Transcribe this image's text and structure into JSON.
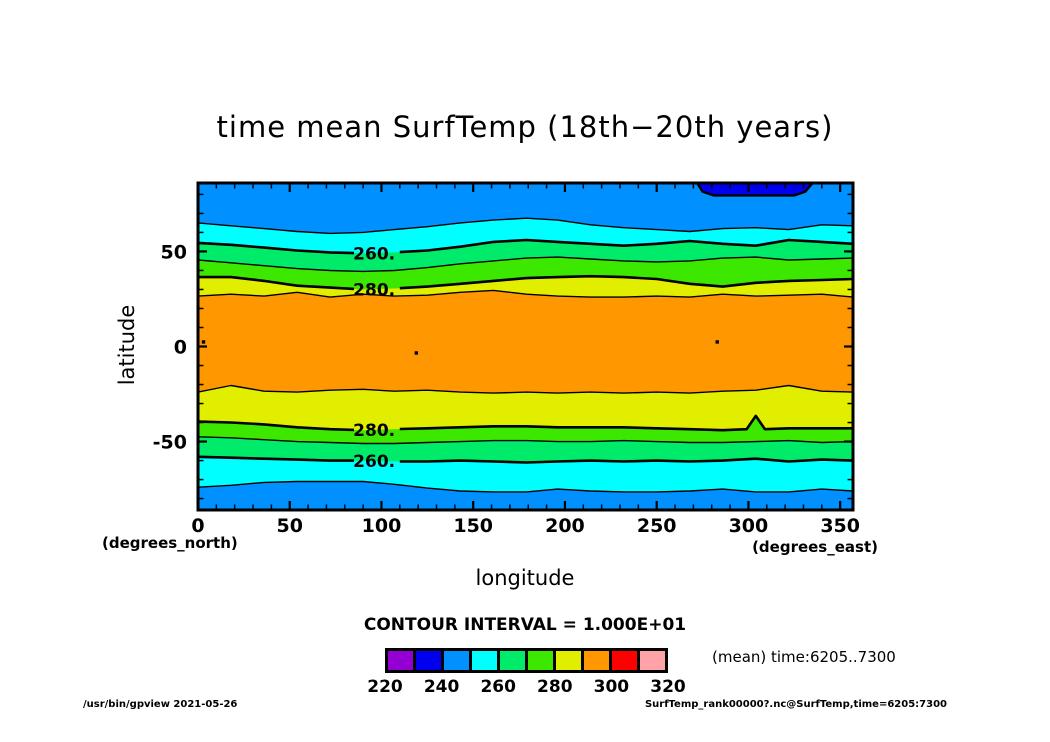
{
  "title": "time mean SurfTemp (18th−20th years)",
  "y_axis": {
    "label": "latitude",
    "unit": "(degrees_north)",
    "ticks": [
      "50",
      "0",
      "-50"
    ]
  },
  "x_axis": {
    "label": "longitude",
    "unit": "(degrees_east)",
    "ticks": [
      "0",
      "50",
      "100",
      "150",
      "200",
      "250",
      "300",
      "350"
    ]
  },
  "colorbar": {
    "heading": "CONTOUR INTERVAL = 1.000E+01",
    "tick_labels": [
      "220",
      "240",
      "260",
      "280",
      "300",
      "320"
    ],
    "cell_colors": [
      "#9400D3",
      "#0000EE",
      "#0090FF",
      "#00FFFF",
      "#00EB69",
      "#3CE800",
      "#E1EE00",
      "#FF9800",
      "#FF0000",
      "#FFA3A8"
    ],
    "cell_ranges": [
      "220-230",
      "230-240",
      "240-250",
      "250-260",
      "260-270",
      "270-280",
      "280-290",
      "290-300",
      "300-310",
      "310-320"
    ]
  },
  "annotations": {
    "mean_time": "(mean) time:6205..7300",
    "footer_left": "/usr/bin/gpview   2021-05-26",
    "footer_right": "SurfTemp_rank00000?.nc@SurfTemp,time=6205:7300"
  },
  "chart_data": {
    "type": "heatmap",
    "subtype": "filled-contour-map",
    "title": "time mean SurfTemp (18th-20th years)",
    "xlabel": "longitude (degrees_east)",
    "ylabel": "latitude (degrees_north)",
    "xlim": [
      0,
      357
    ],
    "ylim": [
      -86,
      86
    ],
    "x_major_ticks": [
      0,
      50,
      100,
      150,
      200,
      250,
      300,
      350
    ],
    "x_minor_step": 10,
    "y_major_ticks": [
      50,
      0,
      -50
    ],
    "y_minor_step": 10,
    "contour_interval": 10,
    "band_colors_north_to_south": [
      "#0090FF",
      "#00FFFF",
      "#00EB69",
      "#3CE800",
      "#E1EE00",
      "#FF9800",
      "#E1EE00",
      "#3CE800",
      "#00EB69",
      "#00FFFF",
      "#0090FF"
    ],
    "band_values_north_to_south": [
      "240-250",
      "250-260",
      "260-270",
      "270-280",
      "280-290",
      "290-300",
      "280-290",
      "270-280",
      "260-270",
      "250-260",
      "240-250"
    ],
    "sample_lons": [
      0,
      18,
      36,
      54,
      72,
      90,
      107,
      125,
      143,
      161,
      179,
      196,
      214,
      232,
      250,
      268,
      286,
      304,
      322,
      340,
      357
    ],
    "label_gap_lon": [
      85,
      110
    ],
    "boundaries": [
      {
        "level": 250,
        "thick": false,
        "labeled": false,
        "lats": [
          65,
          63.5,
          62,
          60.5,
          59.5,
          60,
          61.5,
          63,
          65,
          66.5,
          67.5,
          66.5,
          64,
          62.5,
          61.5,
          60.5,
          62,
          62.5,
          61.5,
          64,
          63.5
        ]
      },
      {
        "level": 260,
        "thick": true,
        "labeled": true,
        "lats": [
          54.5,
          53.5,
          52,
          50.5,
          49.5,
          49,
          49.5,
          50.5,
          52.5,
          55,
          56,
          55,
          54,
          53,
          54,
          55.5,
          54,
          53,
          56,
          55,
          54
        ]
      },
      {
        "level": 270,
        "thick": false,
        "labeled": false,
        "lats": [
          45.5,
          44,
          42.5,
          41,
          40,
          39.5,
          40,
          41.5,
          43.5,
          45,
          46.5,
          47,
          46,
          45,
          44.5,
          45,
          46.5,
          47,
          45.5,
          46,
          46.5
        ]
      },
      {
        "level": 280,
        "thick": true,
        "labeled": true,
        "lats": [
          36.5,
          36.5,
          34.5,
          32,
          31,
          30,
          30.5,
          31.5,
          33,
          34.5,
          36,
          36.5,
          37,
          36.5,
          35.5,
          33,
          31.5,
          33.5,
          34.5,
          35,
          35.5
        ]
      },
      {
        "level": 290,
        "thick": false,
        "labeled": false,
        "lats": [
          26.5,
          27.5,
          26.5,
          28.5,
          26,
          27.5,
          26.5,
          27,
          28.5,
          29.5,
          27.5,
          26.5,
          26,
          26,
          26.5,
          26,
          27.5,
          26.5,
          27,
          27.5,
          26
        ]
      },
      {
        "level": 290,
        "thick": false,
        "labeled": false,
        "lats": [
          -24,
          -20.5,
          -23.5,
          -24,
          -23,
          -22.5,
          -23.5,
          -23,
          -24,
          -24.5,
          -24,
          -24.5,
          -24,
          -24.5,
          -24,
          -24.5,
          -23.5,
          -23,
          -20.5,
          -23.5,
          -24
        ]
      },
      {
        "level": 280,
        "thick": true,
        "labeled": true,
        "points": [
          [
            0,
            -39.5
          ],
          [
            18,
            -40
          ],
          [
            36,
            -41
          ],
          [
            54,
            -42.5
          ],
          [
            72,
            -43.5
          ],
          [
            90,
            -44
          ],
          [
            107,
            -43.5
          ],
          [
            125,
            -43
          ],
          [
            143,
            -42.5
          ],
          [
            161,
            -42
          ],
          [
            179,
            -42
          ],
          [
            196,
            -42.5
          ],
          [
            214,
            -42.5
          ],
          [
            232,
            -42.5
          ],
          [
            250,
            -43
          ],
          [
            268,
            -43.5
          ],
          [
            286,
            -44
          ],
          [
            299,
            -43.5
          ],
          [
            304,
            -36.5
          ],
          [
            309,
            -43.5
          ],
          [
            322,
            -43
          ],
          [
            340,
            -43
          ],
          [
            357,
            -43
          ]
        ]
      },
      {
        "level": 270,
        "thick": false,
        "labeled": false,
        "lats": [
          -47.5,
          -48,
          -49,
          -50,
          -50.5,
          -51,
          -51,
          -50.5,
          -50,
          -49.5,
          -49.5,
          -50,
          -50,
          -49.5,
          -50,
          -50.5,
          -50.5,
          -50,
          -49.5,
          -50.5,
          -50
        ]
      },
      {
        "level": 260,
        "thick": true,
        "labeled": true,
        "lats": [
          -58,
          -58.5,
          -59,
          -59.5,
          -60,
          -60,
          -60.5,
          -60.5,
          -60,
          -60.5,
          -61,
          -60.5,
          -60,
          -60.5,
          -60,
          -60.5,
          -60,
          -59,
          -60.5,
          -59.5,
          -60
        ]
      },
      {
        "level": 250,
        "thick": false,
        "labeled": false,
        "lats": [
          -74,
          -73,
          -71.5,
          -71,
          -71,
          -71,
          -72.5,
          -74.5,
          -76,
          -76.5,
          -76.5,
          -75,
          -76,
          -76.5,
          -76.5,
          -76,
          -75,
          -76.5,
          -76.5,
          -75,
          -76
        ]
      }
    ],
    "cold_patch": {
      "level": 240,
      "color": "#0000EE",
      "points": [
        [
          272,
          87
        ],
        [
          275,
          81.5
        ],
        [
          281,
          79.5
        ],
        [
          325,
          79.5
        ],
        [
          331,
          81.5
        ],
        [
          335,
          87
        ]
      ]
    },
    "contour_labels": [
      {
        "text": "260.",
        "lon": 96,
        "lat": 49
      },
      {
        "text": "280.",
        "lon": 96,
        "lat": 30
      },
      {
        "text": "280.",
        "lon": 96,
        "lat": -44
      },
      {
        "text": "260.",
        "lon": 96,
        "lat": -60.3
      }
    ],
    "closed_contour_spots": [
      [
        3,
        2.4
      ],
      [
        119,
        -3.4
      ],
      [
        283,
        2.4
      ]
    ]
  }
}
